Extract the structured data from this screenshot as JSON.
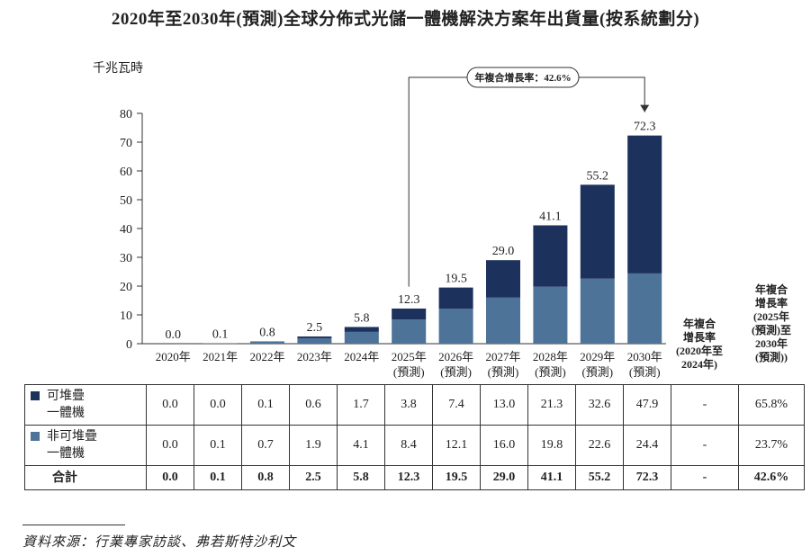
{
  "title": "2020年至2030年(預測)全球分佈式光儲一體機解決方案年出貨量(按系統劃分)",
  "colors": {
    "stackable": "#1c315c",
    "non_stackable": "#4d7398"
  },
  "chart_data": {
    "type": "bar",
    "stacked": true,
    "ylabel": "千兆瓦時",
    "ylim": [
      0,
      80
    ],
    "yticks": [
      0,
      10,
      20,
      30,
      40,
      50,
      60,
      70,
      80
    ],
    "categories": [
      [
        "2020年"
      ],
      [
        "2021年"
      ],
      [
        "2022年"
      ],
      [
        "2023年"
      ],
      [
        "2024年"
      ],
      [
        "2025年",
        "(預測)"
      ],
      [
        "2026年",
        "(預測)"
      ],
      [
        "2027年",
        "(預測)"
      ],
      [
        "2028年",
        "(預測)"
      ],
      [
        "2029年",
        "(預測)"
      ],
      [
        "2030年",
        "(預測)"
      ]
    ],
    "series": [
      {
        "name": "非可堆疊一體機",
        "values": [
          0.0,
          0.1,
          0.7,
          1.9,
          4.1,
          8.4,
          12.1,
          16.0,
          19.8,
          22.6,
          24.4
        ]
      },
      {
        "name": "可堆疊一體機",
        "values": [
          0.0,
          0.0,
          0.1,
          0.6,
          1.7,
          3.8,
          7.4,
          13.0,
          21.3,
          32.6,
          47.9
        ]
      }
    ],
    "totals": [
      0.0,
      0.1,
      0.8,
      2.5,
      5.8,
      12.3,
      19.5,
      29.0,
      41.1,
      55.2,
      72.3
    ],
    "cagr_annotation": "年複合增長率：42.6%",
    "cagr_headers": [
      [
        "年複合",
        "增長率",
        "(2020年至",
        "2024年)"
      ],
      [
        "年複合",
        "增長率",
        "(2025年",
        "(預測)至",
        "2030年",
        "(預測))"
      ]
    ]
  },
  "table": {
    "rows": [
      {
        "label": [
          "可堆疊",
          "一體機"
        ],
        "color_key": "stackable",
        "values": [
          "0.0",
          "0.0",
          "0.1",
          "0.6",
          "1.7",
          "3.8",
          "7.4",
          "13.0",
          "21.3",
          "32.6",
          "47.9"
        ],
        "cagr1": "-",
        "cagr2": "65.8%"
      },
      {
        "label": [
          "非可堆疊",
          "一體機"
        ],
        "color_key": "non_stackable",
        "values": [
          "0.0",
          "0.1",
          "0.7",
          "1.9",
          "4.1",
          "8.4",
          "12.1",
          "16.0",
          "19.8",
          "22.6",
          "24.4"
        ],
        "cagr1": "-",
        "cagr2": "23.7%"
      },
      {
        "label": [
          "合計"
        ],
        "color_key": null,
        "bold": true,
        "values": [
          "0.0",
          "0.1",
          "0.8",
          "2.5",
          "5.8",
          "12.3",
          "19.5",
          "29.0",
          "41.1",
          "55.2",
          "72.3"
        ],
        "cagr1": "-",
        "cagr2": "42.6%"
      }
    ]
  },
  "source": "資料來源：行業專家訪談、弗若斯特沙利文"
}
